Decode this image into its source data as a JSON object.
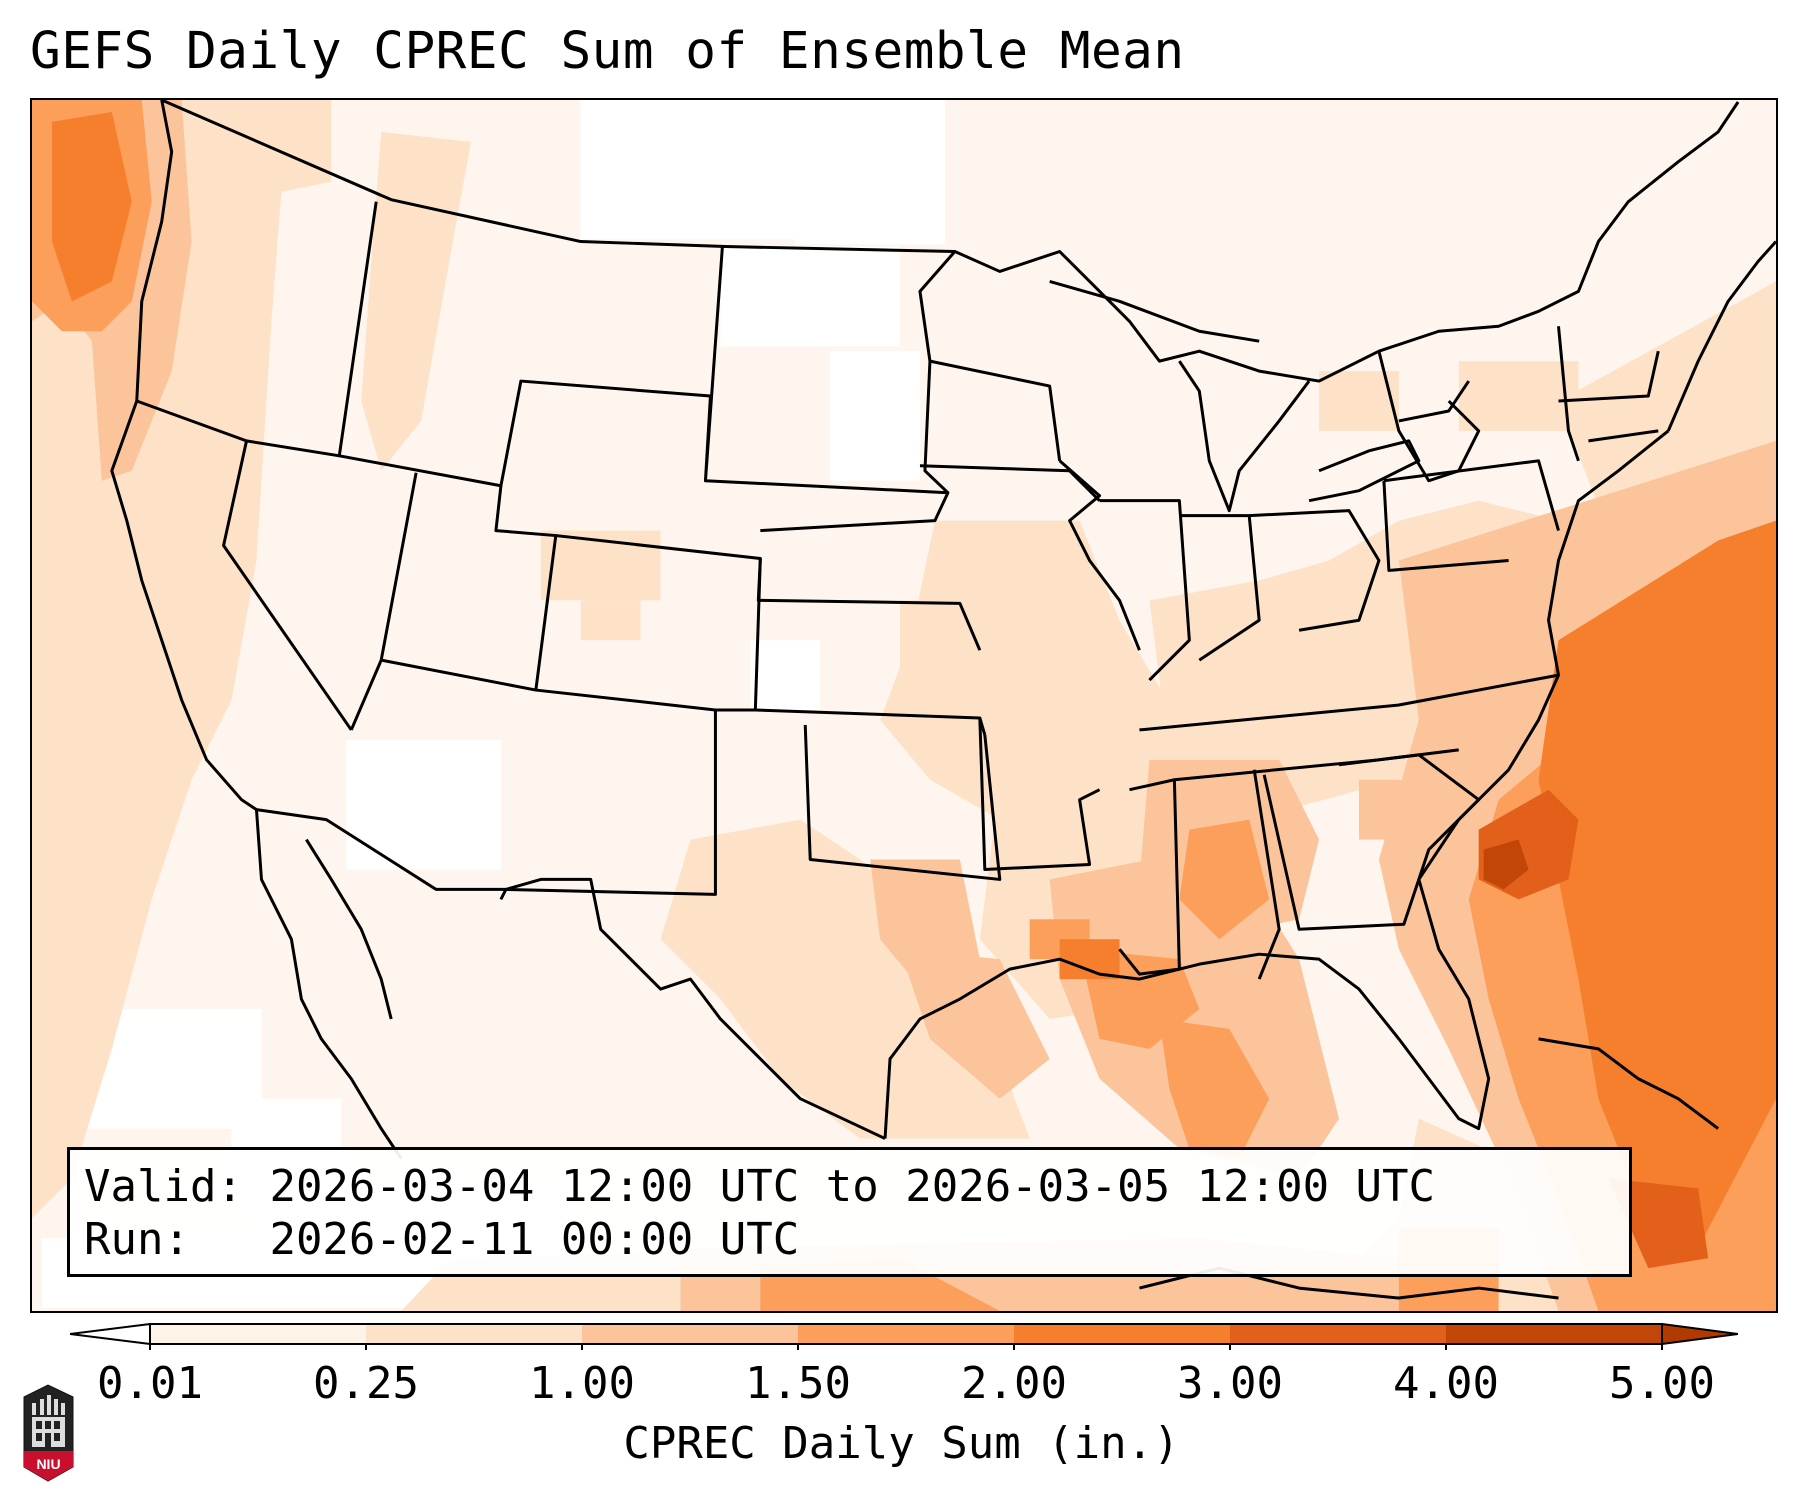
{
  "title": "GEFS Daily CPREC Sum of Ensemble Mean",
  "info": {
    "valid_label": "Valid:",
    "valid_text": "2026-03-04 12:00 UTC to 2026-03-05 12:00 UTC",
    "run_label": "Run:",
    "run_text": "2026-02-11 00:00 UTC"
  },
  "colorbar": {
    "label": "CPREC Daily Sum (in.)",
    "ticks": [
      "0.01",
      "0.25",
      "1.00",
      "1.50",
      "2.00",
      "3.00",
      "4.00",
      "5.00"
    ],
    "colors": [
      "#fef3e7",
      "#fde2c8",
      "#fcc49a",
      "#fb9f5a",
      "#f57f2c",
      "#e3601a",
      "#c24607"
    ],
    "under_color": "#ffffff",
    "over_color": "#b13a00"
  },
  "logo": {
    "text": "NIU",
    "name": "northern-illinois-university-logo"
  },
  "map": {
    "region": "Continental United States",
    "field": "precipitation-shading",
    "boundaries": [
      "coastlines",
      "state-borders",
      "country-borders"
    ]
  }
}
